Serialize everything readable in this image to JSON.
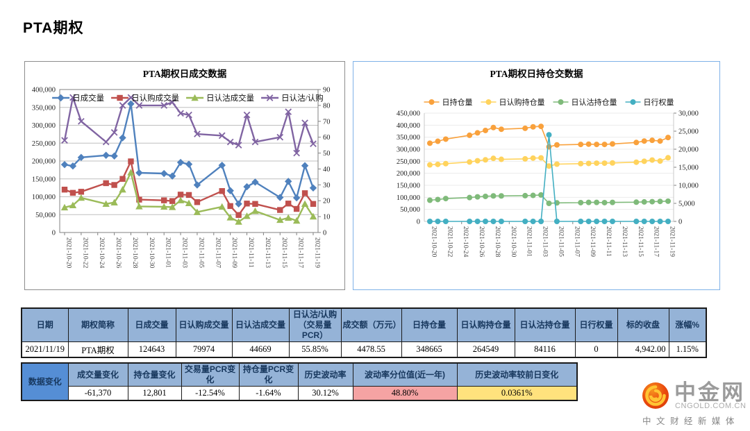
{
  "page_title": "PTA期权",
  "chart_data": [
    {
      "id": "daily-trade",
      "type": "line",
      "title": "PTA期权日成交数据",
      "legend_position": "top-inside",
      "grid": true,
      "x_dates": [
        "2021-10-20",
        "2021-10-21",
        "2021-10-22",
        "2021-10-25",
        "2021-10-26",
        "2021-10-27",
        "2021-10-28",
        "2021-10-29",
        "2021-11-01",
        "2021-11-02",
        "2021-11-03",
        "2021-11-04",
        "2021-11-05",
        "2021-11-08",
        "2021-11-09",
        "2021-11-10",
        "2021-11-11",
        "2021-11-12",
        "2021-11-15",
        "2021-11-16",
        "2021-11-17",
        "2021-11-18",
        "2021-11-19"
      ],
      "x_tick_labels": [
        "2021-10-20",
        "2021-10-22",
        "2021-10-24",
        "2021-10-26",
        "2021-10-28",
        "2021-10-30",
        "2021-11-01",
        "2021-11-03",
        "2021-11-05",
        "2021-11-07",
        "2021-11-09",
        "2021-11-11",
        "2021-11-13",
        "2021-11-15",
        "2021-11-17",
        "2021-11-19"
      ],
      "axis_left": {
        "min": 0,
        "max": 400000,
        "step": 50000
      },
      "axis_right": {
        "min": 0,
        "max": 90,
        "step": 10
      },
      "series": [
        {
          "name": "日成交量",
          "axis": "left",
          "color": "#4F81BD",
          "marker": "diamond",
          "values": [
            190000,
            186000,
            210000,
            216000,
            214000,
            265000,
            360000,
            167000,
            165000,
            158000,
            196000,
            191000,
            133000,
            188000,
            117000,
            80000,
            128000,
            141000,
            98000,
            143000,
            97000,
            187000,
            124643
          ]
        },
        {
          "name": "日认购成交量",
          "axis": "left",
          "color": "#C0504D",
          "marker": "square",
          "values": [
            120000,
            111000,
            114000,
            138000,
            133000,
            150000,
            199000,
            92000,
            90000,
            88000,
            106000,
            105000,
            85000,
            116000,
            74000,
            49000,
            81000,
            80000,
            63000,
            81000,
            66000,
            110000,
            79974
          ]
        },
        {
          "name": "日认沽成交量",
          "axis": "left",
          "color": "#9BBB59",
          "marker": "triangle",
          "values": [
            70000,
            76000,
            97000,
            80000,
            84000,
            120000,
            168000,
            73000,
            72000,
            71000,
            90000,
            82000,
            57000,
            72000,
            42000,
            30000,
            46000,
            60000,
            35000,
            41000,
            33000,
            80000,
            44669
          ]
        },
        {
          "name": "日认沽/认购",
          "axis": "right",
          "color": "#8064A2",
          "marker": "x",
          "values": [
            58,
            85,
            70,
            57,
            63,
            80,
            85,
            80,
            80,
            82,
            75,
            74,
            62,
            61,
            57,
            55,
            74,
            57,
            60,
            76,
            50,
            69,
            55.85
          ]
        }
      ]
    },
    {
      "id": "daily-oi",
      "type": "line",
      "title": "PTA期权日持仓交数据",
      "legend_position": "top",
      "grid": true,
      "x_dates": [
        "2021-10-20",
        "2021-10-21",
        "2021-10-22",
        "2021-10-25",
        "2021-10-26",
        "2021-10-27",
        "2021-10-28",
        "2021-10-29",
        "2021-11-01",
        "2021-11-02",
        "2021-11-03",
        "2021-11-04",
        "2021-11-05",
        "2021-11-08",
        "2021-11-09",
        "2021-11-10",
        "2021-11-11",
        "2021-11-12",
        "2021-11-15",
        "2021-11-16",
        "2021-11-17",
        "2021-11-18",
        "2021-11-19"
      ],
      "x_tick_labels": [
        "2021-10-20",
        "2021-10-22",
        "2021-10-24",
        "2021-10-26",
        "2021-10-28",
        "2021-10-30",
        "2021-11-01",
        "2021-11-03",
        "2021-11-05",
        "2021-11-07",
        "2021-11-09",
        "2021-11-11",
        "2021-11-13",
        "2021-11-15",
        "2021-11-17",
        "2021-11-19"
      ],
      "axis_left": {
        "min": 0,
        "max": 450000,
        "step": 50000
      },
      "axis_right": {
        "min": 0,
        "max": 30000,
        "step": 5000
      },
      "series": [
        {
          "name": "日持仓量",
          "axis": "left",
          "color": "#F9A13C",
          "marker": "circle",
          "values": [
            325000,
            333000,
            342000,
            358000,
            368000,
            378000,
            390000,
            383000,
            387000,
            393000,
            395000,
            310000,
            318000,
            320000,
            321000,
            320000,
            320000,
            322000,
            328000,
            334000,
            337000,
            334000,
            348665
          ]
        },
        {
          "name": "日认购持仓量",
          "axis": "left",
          "color": "#FFD35D",
          "marker": "circle",
          "values": [
            235000,
            237000,
            240000,
            247000,
            252000,
            256000,
            262000,
            258000,
            260000,
            263000,
            264000,
            230000,
            238000,
            240000,
            241000,
            242000,
            242000,
            243000,
            246000,
            250000,
            255000,
            251000,
            264549
          ]
        },
        {
          "name": "日认沽持仓量",
          "axis": "left",
          "color": "#7FBA7A",
          "marker": "circle",
          "values": [
            88000,
            91000,
            95000,
            99000,
            102000,
            104000,
            106000,
            106000,
            107000,
            108000,
            110000,
            75000,
            77000,
            78000,
            79000,
            79000,
            78000,
            79000,
            80000,
            81000,
            82000,
            83000,
            84116
          ]
        },
        {
          "name": "日行权量",
          "axis": "right",
          "color": "#43AFC2",
          "marker": "circle",
          "values": [
            0,
            0,
            0,
            0,
            0,
            0,
            0,
            0,
            0,
            0,
            0,
            24000,
            0,
            0,
            0,
            0,
            0,
            0,
            0,
            0,
            0,
            0,
            0
          ]
        }
      ]
    }
  ],
  "tables": {
    "daily": {
      "headers": [
        "日期",
        "期权简称",
        "日成交量",
        "日认购成交量",
        "日认沽成交量",
        "日认沽/认购（交易量PCR）",
        "成交额（万元）",
        "日持仓量",
        "日认购持仓量",
        "日认沽持仓量",
        "日行权量",
        "标的收盘",
        "涨幅%"
      ],
      "row": [
        "2021/11/19",
        "PTA期权",
        "124643",
        "79974",
        "44669",
        "55.85%",
        "4478.55",
        "348665",
        "264549",
        "84116",
        "0",
        "4,942.00",
        "1.15%"
      ]
    },
    "changes": {
      "label": "数据变化",
      "headers": [
        "成交量变化",
        "持仓量变化",
        "交易量PCR变化",
        "持仓量PCR变化",
        "历史波动率",
        "波动率分位值(近一年)",
        "历史波动率较前日变化"
      ],
      "values": [
        "-61,370",
        "12,801",
        "-12.54%",
        "-1.64%",
        "30.12%",
        "48.80%",
        "0.0361%"
      ],
      "value_cell_colors": [
        "#FFFFFF",
        "#FFFFFF",
        "#FFFFFF",
        "#FFFFFF",
        "#FFFFFF",
        "#F5A3A3",
        "#FFE27D"
      ]
    }
  },
  "logo": {
    "brand": "中金网",
    "domain": "CNGOLD.COM.CN",
    "tagline": "中 文 财 经 新 媒 体",
    "icon": "cloud-swirl-icon",
    "icon_colors": {
      "red": "#E2420C",
      "orange": "#F7941E",
      "gold": "#FFC433"
    }
  },
  "colors": {
    "table_header_bg": "#95B3D7",
    "table_label_bg": "#558ED5",
    "highlight_pink": "#F5A3A3",
    "highlight_yellow": "#FFE27D",
    "chart2_border": "#7EB1E8"
  }
}
